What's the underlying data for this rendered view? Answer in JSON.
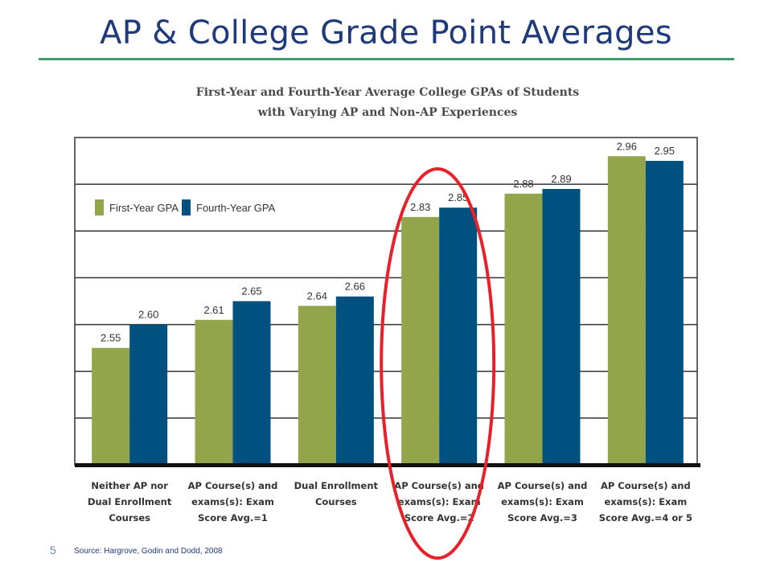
{
  "slide": {
    "title": "AP & College Grade Point Averages",
    "slide_number": "5",
    "source": "Source: Hargrove, Godin and Dodd, 2008"
  },
  "colors": {
    "first_year": "#93a54a",
    "fourth_year": "#00517f",
    "highlight": "#e8202a",
    "title": "#1f3a7a"
  },
  "chart_data": {
    "type": "bar",
    "title": "First-Year and Fourth-Year Average College GPAs of Students with Varying AP and Non-AP Experiences",
    "title_lines": [
      "First-Year and Fourth-Year Average College GPAs of Students",
      "with Varying AP and Non-AP Experiences"
    ],
    "categories": [
      [
        "Neither AP nor",
        "Dual Enrollment",
        "Courses"
      ],
      [
        "AP Course(s) and",
        "exams(s): Exam",
        "Score Avg.=1"
      ],
      [
        "Dual Enrollment",
        "Courses"
      ],
      [
        "AP Course(s) and",
        "exams(s): Exam",
        "Score Avg.=2"
      ],
      [
        "AP Course(s) and",
        "exams(s): Exam",
        "Score Avg.=3"
      ],
      [
        "AP Course(s) and",
        "exams(s): Exam",
        "Score Avg.=4 or 5"
      ]
    ],
    "series": [
      {
        "name": "First-Year GPA",
        "values": [
          2.55,
          2.61,
          2.64,
          2.83,
          2.88,
          2.96
        ],
        "labels": [
          "2.55",
          "2.61",
          "2.64",
          "2.83",
          "2.88",
          "2.96"
        ]
      },
      {
        "name": "Fourth-Year GPA",
        "values": [
          2.6,
          2.65,
          2.66,
          2.85,
          2.89,
          2.95
        ],
        "labels": [
          "2.60",
          "2.65",
          "2.66",
          "2.85",
          "2.89",
          "2.95"
        ]
      }
    ],
    "ylim": [
      2.3,
      3.0
    ],
    "grid": true,
    "legend": "top-left",
    "highlighted_category": 3
  }
}
